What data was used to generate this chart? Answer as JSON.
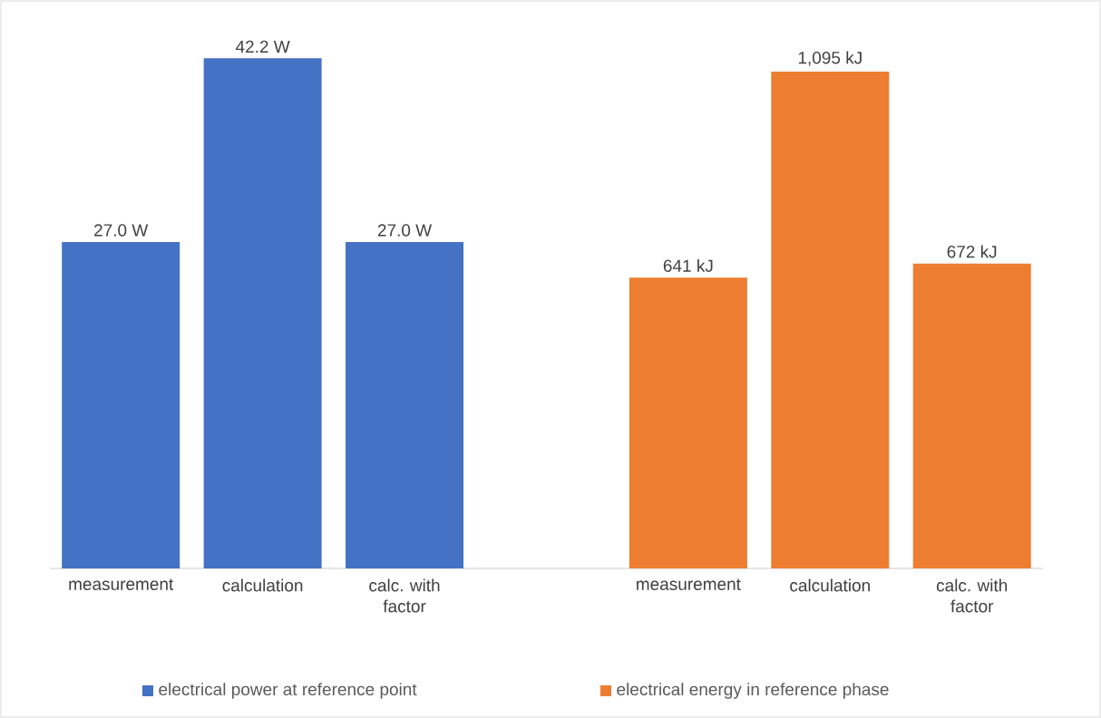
{
  "chart_data": {
    "type": "bar",
    "categories": [
      "measurement",
      "calculation",
      "calc. with factor",
      null,
      "measurement",
      "calculation",
      "calc. with factor"
    ],
    "series": [
      {
        "name": "electrical power at reference point",
        "color": "#4472c4",
        "axis": "y",
        "values": [
          27.0,
          42.2,
          27.0,
          null,
          null,
          null,
          null
        ],
        "value_labels": [
          "27.0 W",
          "42.2 W",
          "27.0 W",
          null,
          null,
          null,
          null
        ]
      },
      {
        "name": "electrical energy in reference phase",
        "color": "#ed7d31",
        "axis": "y2",
        "values": [
          null,
          null,
          null,
          null,
          641,
          1095,
          672
        ],
        "value_labels": [
          null,
          null,
          null,
          null,
          "641 kJ",
          "1,095 kJ",
          "672 kJ"
        ]
      }
    ],
    "tick_labels": "x",
    "legend": "bottom"
  }
}
